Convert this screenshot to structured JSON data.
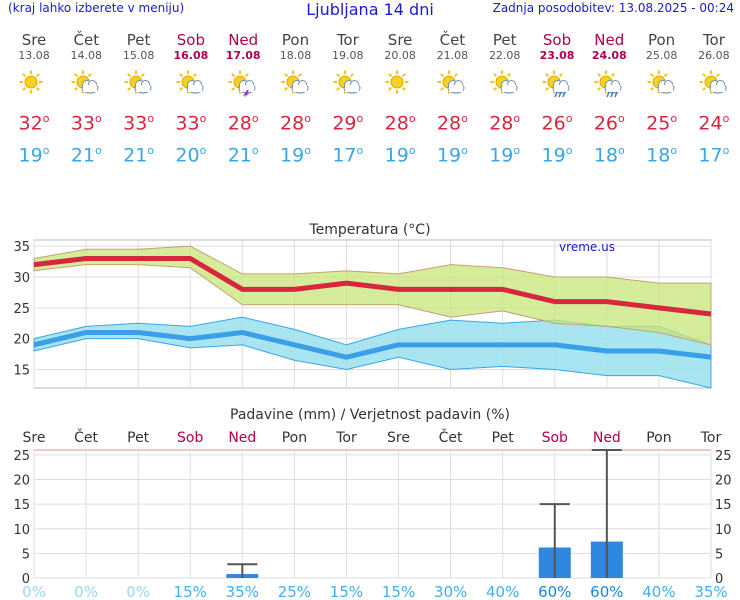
{
  "header": {
    "menu_hint": "(kraj lahko izberete v meniju)",
    "title": "Ljubljana 14 dni",
    "updated": "Zadnja posodobitev: 13.08.2025 - 00:24"
  },
  "colors": {
    "max_temp": "#d7263d",
    "min_temp": "#3aa6e6",
    "weekend": "#b0004f",
    "precip_bar": "#2f87e0",
    "probability_text": "#3fb0f0"
  },
  "forecast": [
    {
      "day": "Sre",
      "date": "13.08",
      "max": "32",
      "min": "19",
      "icon": "sun-icon",
      "weekend": false
    },
    {
      "day": "Čet",
      "date": "14.08",
      "max": "33",
      "min": "21",
      "icon": "sun-cloud-icon",
      "weekend": false
    },
    {
      "day": "Pet",
      "date": "15.08",
      "max": "33",
      "min": "21",
      "icon": "sun-cloud-icon",
      "weekend": false
    },
    {
      "day": "Sob",
      "date": "16.08",
      "max": "33",
      "min": "20",
      "icon": "sun-cloud-icon",
      "weekend": true
    },
    {
      "day": "Ned",
      "date": "17.08",
      "max": "28",
      "min": "21",
      "icon": "sun-thunder-icon",
      "weekend": true
    },
    {
      "day": "Pon",
      "date": "18.08",
      "max": "28",
      "min": "19",
      "icon": "sun-cloud-icon",
      "weekend": false
    },
    {
      "day": "Tor",
      "date": "19.08",
      "max": "29",
      "min": "17",
      "icon": "sun-cloud-icon",
      "weekend": false
    },
    {
      "day": "Sre",
      "date": "20.08",
      "max": "28",
      "min": "19",
      "icon": "sun-icon",
      "weekend": false
    },
    {
      "day": "Čet",
      "date": "21.08",
      "max": "28",
      "min": "19",
      "icon": "sun-cloud-icon",
      "weekend": false
    },
    {
      "day": "Pet",
      "date": "22.08",
      "max": "28",
      "min": "19",
      "icon": "sun-cloud-icon",
      "weekend": false
    },
    {
      "day": "Sob",
      "date": "23.08",
      "max": "26",
      "min": "19",
      "icon": "sun-rain-icon",
      "weekend": true
    },
    {
      "day": "Ned",
      "date": "24.08",
      "max": "26",
      "min": "18",
      "icon": "sun-rain-icon",
      "weekend": true
    },
    {
      "day": "Pon",
      "date": "25.08",
      "max": "25",
      "min": "18",
      "icon": "sun-cloud-icon",
      "weekend": false
    },
    {
      "day": "Tor",
      "date": "26.08",
      "max": "24",
      "min": "17",
      "icon": "sun-cloud-icon",
      "weekend": false
    }
  ],
  "chart_data": [
    {
      "type": "line",
      "title": "Temperatura (°C)",
      "watermark": "vreme.us",
      "ylim": [
        12,
        36
      ],
      "yticks": [
        15,
        20,
        25,
        30,
        35
      ],
      "grid": true,
      "categories": [
        "13.08",
        "14.08",
        "15.08",
        "16.08",
        "17.08",
        "18.08",
        "19.08",
        "20.08",
        "21.08",
        "22.08",
        "23.08",
        "24.08",
        "25.08",
        "26.08"
      ],
      "series": [
        {
          "role": "max",
          "values": [
            32,
            33,
            33,
            33,
            28,
            28,
            29,
            28,
            28,
            28,
            26,
            26,
            25,
            24
          ]
        },
        {
          "role": "max-band-upper",
          "values": [
            33,
            34.5,
            34.5,
            35,
            30.5,
            30.5,
            31,
            30.5,
            32,
            31.5,
            30,
            30,
            29,
            29
          ]
        },
        {
          "role": "max-band-lower",
          "values": [
            31,
            32,
            32,
            31.5,
            25.5,
            25.5,
            25.5,
            25.5,
            23.5,
            24.5,
            22.5,
            22,
            21,
            19
          ]
        },
        {
          "role": "min",
          "values": [
            19,
            21,
            21,
            20,
            21,
            19,
            17,
            19,
            19,
            19,
            19,
            18,
            18,
            17
          ]
        },
        {
          "role": "min-band-upper",
          "values": [
            20,
            22,
            22.5,
            22,
            23.5,
            21.5,
            19,
            21.5,
            23,
            22.5,
            23,
            22,
            22,
            19
          ]
        },
        {
          "role": "min-band-lower",
          "values": [
            18,
            20,
            20,
            18.5,
            19,
            16.5,
            15,
            17,
            15,
            15.5,
            15,
            14,
            14,
            12
          ]
        }
      ]
    },
    {
      "type": "bar",
      "title": "Padavine (mm) / Verjetnost padavin (%)",
      "ylim": [
        0,
        26
      ],
      "yticks": [
        0,
        5,
        10,
        15,
        20,
        25
      ],
      "grid": true,
      "categories": [
        "Sre",
        "Čet",
        "Pet",
        "Sob",
        "Ned",
        "Pon",
        "Tor",
        "Sre",
        "Čet",
        "Pet",
        "Sob",
        "Ned",
        "Pon",
        "Tor"
      ],
      "weekend_flags": [
        false,
        false,
        false,
        true,
        true,
        false,
        false,
        false,
        false,
        false,
        true,
        true,
        false,
        false
      ],
      "values": [
        0,
        0,
        0,
        0,
        0.8,
        0,
        0,
        0,
        0,
        0,
        6.2,
        7.4,
        0,
        0
      ],
      "error_high": [
        null,
        null,
        null,
        null,
        2.8,
        null,
        null,
        null,
        null,
        null,
        15,
        26,
        null,
        null
      ],
      "probability": [
        "0%",
        "0%",
        "0%",
        "15%",
        "35%",
        "25%",
        "15%",
        "15%",
        "30%",
        "40%",
        "60%",
        "60%",
        "40%",
        "35%"
      ]
    }
  ]
}
